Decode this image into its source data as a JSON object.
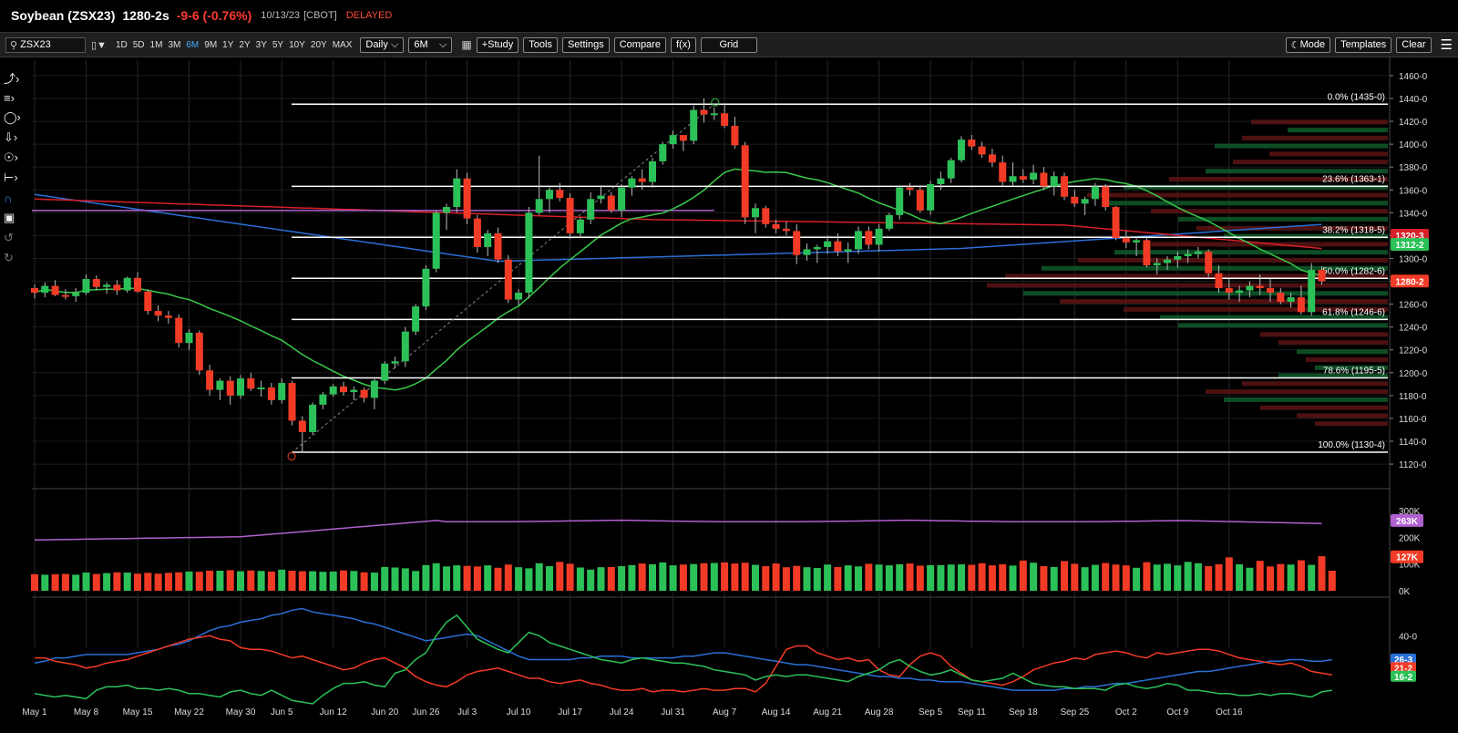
{
  "header": {
    "symbol": "Soybean (ZSX23)",
    "price": "1280-2s",
    "change": "-9-6 (-0.76%)",
    "date": "10/13/23",
    "exchange": "[CBOT]",
    "delayed": "DELAYED"
  },
  "toolbar": {
    "search_value": "ZSX23",
    "chart_style_icon": "candlestick-icon",
    "ranges": [
      "1D",
      "5D",
      "1M",
      "3M",
      "6M",
      "9M",
      "1Y",
      "2Y",
      "3Y",
      "5Y",
      "10Y",
      "20Y",
      "MAX"
    ],
    "selected_range": "6M",
    "interval": "Daily",
    "period": "6M",
    "study_label": "+Study",
    "tools_label": "Tools",
    "settings_label": "Settings",
    "compare_label": "Compare",
    "fx_label": "f(x)",
    "grid_label": "Grid",
    "mode_label": "Mode",
    "templates_label": "Templates",
    "clear_label": "Clear"
  },
  "sidebar_icons": [
    "line-tool-icon",
    "fib-tool-icon",
    "shape-tool-icon",
    "arrow-tool-icon",
    "annotation-tool-icon",
    "measure-tool-icon",
    "magnet-icon",
    "lock-icon",
    "undo-icon",
    "redo-icon"
  ],
  "colors": {
    "up": "#2cc158",
    "down": "#f23b26",
    "ma_green": "#38c94a",
    "ma_blue": "#2a6fd6",
    "ma_red": "#d8202a",
    "ma_purple": "#b060d0",
    "fib": "#ffffff"
  },
  "chart_data": {
    "type": "candlestick",
    "price_axis": {
      "ticks": [
        "1460-0",
        "1440-0",
        "1420-0",
        "1400-0",
        "1380-0",
        "1360-0",
        "1340-0",
        "1320-0",
        "1300-0",
        "1280-0",
        "1260-0",
        "1240-0",
        "1220-0",
        "1200-0",
        "1180-0",
        "1160-0",
        "1140-0",
        "1120-0"
      ],
      "ylim": [
        1112,
        1470
      ]
    },
    "date_ticks": [
      "May 1",
      "May 8",
      "May 15",
      "May 22",
      "May 30",
      "Jun 5",
      "Jun 12",
      "Jun 20",
      "Jun 26",
      "Jul 3",
      "Jul 10",
      "Jul 17",
      "Jul 24",
      "Jul 31",
      "Aug 7",
      "Aug 14",
      "Aug 21",
      "Aug 28",
      "Sep 5",
      "Sep 11",
      "Sep 18",
      "Sep 25",
      "Oct 2",
      "Oct 9",
      "Oct 16"
    ],
    "date_tick_bars": [
      0,
      5,
      10,
      15,
      20,
      24,
      29,
      34,
      38,
      42,
      47,
      52,
      57,
      62,
      67,
      72,
      77,
      82,
      87,
      91,
      96,
      101,
      106,
      111,
      116
    ],
    "candles": [
      [
        1274,
        1277,
        1265,
        1270
      ],
      [
        1270,
        1279,
        1266,
        1276
      ],
      [
        1276,
        1281,
        1267,
        1268
      ],
      [
        1268,
        1273,
        1264,
        1267
      ],
      [
        1267,
        1274,
        1262,
        1270
      ],
      [
        1270,
        1286,
        1268,
        1282
      ],
      [
        1282,
        1285,
        1272,
        1275
      ],
      [
        1275,
        1279,
        1269,
        1277
      ],
      [
        1277,
        1281,
        1268,
        1272
      ],
      [
        1272,
        1284,
        1270,
        1283
      ],
      [
        1283,
        1288,
        1270,
        1271
      ],
      [
        1271,
        1273,
        1251,
        1254
      ],
      [
        1254,
        1259,
        1245,
        1250
      ],
      [
        1250,
        1254,
        1243,
        1248
      ],
      [
        1248,
        1251,
        1222,
        1226
      ],
      [
        1226,
        1238,
        1220,
        1235
      ],
      [
        1235,
        1237,
        1198,
        1202
      ],
      [
        1202,
        1207,
        1180,
        1185
      ],
      [
        1185,
        1195,
        1176,
        1193
      ],
      [
        1193,
        1197,
        1172,
        1180
      ],
      [
        1180,
        1198,
        1177,
        1195
      ],
      [
        1195,
        1200,
        1184,
        1186
      ],
      [
        1186,
        1193,
        1179,
        1187
      ],
      [
        1187,
        1191,
        1172,
        1176
      ],
      [
        1176,
        1195,
        1173,
        1191
      ],
      [
        1191,
        1193,
        1154,
        1158
      ],
      [
        1158,
        1162,
        1130,
        1148
      ],
      [
        1148,
        1174,
        1146,
        1172
      ],
      [
        1172,
        1183,
        1168,
        1181
      ],
      [
        1181,
        1190,
        1179,
        1188
      ],
      [
        1188,
        1192,
        1180,
        1183
      ],
      [
        1183,
        1188,
        1176,
        1185
      ],
      [
        1185,
        1187,
        1174,
        1178
      ],
      [
        1178,
        1196,
        1168,
        1193
      ],
      [
        1193,
        1210,
        1190,
        1208
      ],
      [
        1208,
        1214,
        1204,
        1210
      ],
      [
        1210,
        1240,
        1205,
        1236
      ],
      [
        1236,
        1260,
        1233,
        1258
      ],
      [
        1258,
        1294,
        1255,
        1291
      ],
      [
        1291,
        1342,
        1288,
        1340
      ],
      [
        1340,
        1348,
        1325,
        1345
      ],
      [
        1345,
        1378,
        1340,
        1370
      ],
      [
        1370,
        1375,
        1330,
        1335
      ],
      [
        1335,
        1338,
        1305,
        1310
      ],
      [
        1310,
        1325,
        1302,
        1322
      ],
      [
        1322,
        1327,
        1296,
        1299
      ],
      [
        1299,
        1303,
        1261,
        1264
      ],
      [
        1264,
        1273,
        1259,
        1270
      ],
      [
        1270,
        1345,
        1265,
        1340
      ],
      [
        1340,
        1390,
        1338,
        1352
      ],
      [
        1352,
        1362,
        1340,
        1360
      ],
      [
        1360,
        1366,
        1350,
        1353
      ],
      [
        1353,
        1357,
        1317,
        1322
      ],
      [
        1322,
        1336,
        1318,
        1334
      ],
      [
        1334,
        1358,
        1330,
        1352
      ],
      [
        1352,
        1364,
        1348,
        1355
      ],
      [
        1355,
        1358,
        1340,
        1342
      ],
      [
        1342,
        1365,
        1336,
        1362
      ],
      [
        1362,
        1372,
        1355,
        1370
      ],
      [
        1370,
        1378,
        1360,
        1367
      ],
      [
        1367,
        1388,
        1362,
        1385
      ],
      [
        1385,
        1402,
        1382,
        1400
      ],
      [
        1400,
        1412,
        1396,
        1408
      ],
      [
        1408,
        1405,
        1394,
        1403
      ],
      [
        1403,
        1434,
        1400,
        1430
      ],
      [
        1430,
        1440,
        1419,
        1426
      ],
      [
        1426,
        1432,
        1421,
        1427
      ],
      [
        1427,
        1435,
        1414,
        1416
      ],
      [
        1416,
        1424,
        1396,
        1399
      ],
      [
        1399,
        1402,
        1330,
        1336
      ],
      [
        1336,
        1348,
        1322,
        1344
      ],
      [
        1344,
        1346,
        1327,
        1330
      ],
      [
        1330,
        1334,
        1322,
        1326
      ],
      [
        1326,
        1332,
        1320,
        1324
      ],
      [
        1324,
        1330,
        1295,
        1303
      ],
      [
        1303,
        1313,
        1298,
        1308
      ],
      [
        1308,
        1312,
        1296,
        1310
      ],
      [
        1310,
        1320,
        1304,
        1315
      ],
      [
        1315,
        1322,
        1302,
        1306
      ],
      [
        1306,
        1314,
        1296,
        1308
      ],
      [
        1308,
        1328,
        1304,
        1324
      ],
      [
        1324,
        1328,
        1308,
        1312
      ],
      [
        1312,
        1330,
        1306,
        1326
      ],
      [
        1326,
        1340,
        1324,
        1338
      ],
      [
        1338,
        1364,
        1334,
        1362
      ],
      [
        1362,
        1366,
        1355,
        1360
      ],
      [
        1360,
        1364,
        1340,
        1342
      ],
      [
        1342,
        1368,
        1338,
        1365
      ],
      [
        1365,
        1376,
        1360,
        1370
      ],
      [
        1370,
        1388,
        1366,
        1386
      ],
      [
        1386,
        1407,
        1384,
        1404
      ],
      [
        1404,
        1408,
        1395,
        1398
      ],
      [
        1398,
        1402,
        1388,
        1391
      ],
      [
        1391,
        1396,
        1380,
        1384
      ],
      [
        1384,
        1390,
        1364,
        1367
      ],
      [
        1367,
        1384,
        1364,
        1372
      ],
      [
        1372,
        1378,
        1366,
        1369
      ],
      [
        1369,
        1382,
        1365,
        1375
      ],
      [
        1375,
        1380,
        1360,
        1363
      ],
      [
        1363,
        1376,
        1355,
        1372
      ],
      [
        1372,
        1375,
        1351,
        1354
      ],
      [
        1354,
        1360,
        1345,
        1348
      ],
      [
        1348,
        1354,
        1338,
        1352
      ],
      [
        1352,
        1366,
        1346,
        1363
      ],
      [
        1363,
        1365,
        1342,
        1345
      ],
      [
        1345,
        1346,
        1316,
        1318
      ],
      [
        1318,
        1324,
        1309,
        1314
      ],
      [
        1314,
        1319,
        1302,
        1316
      ],
      [
        1316,
        1318,
        1292,
        1294
      ],
      [
        1294,
        1300,
        1286,
        1296
      ],
      [
        1296,
        1302,
        1290,
        1299
      ],
      [
        1299,
        1306,
        1292,
        1302
      ],
      [
        1302,
        1308,
        1296,
        1304
      ],
      [
        1304,
        1310,
        1300,
        1306
      ],
      [
        1306,
        1308,
        1284,
        1287
      ],
      [
        1287,
        1294,
        1270,
        1274
      ],
      [
        1274,
        1282,
        1264,
        1270
      ],
      [
        1270,
        1276,
        1262,
        1272
      ],
      [
        1272,
        1280,
        1266,
        1276
      ],
      [
        1276,
        1286,
        1268,
        1274
      ],
      [
        1274,
        1282,
        1262,
        1270
      ],
      [
        1270,
        1274,
        1260,
        1262
      ],
      [
        1262,
        1270,
        1257,
        1266
      ],
      [
        1266,
        1276,
        1251,
        1253
      ],
      [
        1253,
        1296,
        1250,
        1290
      ],
      [
        1290,
        1293,
        1277,
        1280
      ]
    ],
    "volume_values": [
      62,
      60,
      62,
      63,
      60,
      68,
      63,
      66,
      69,
      68,
      64,
      67,
      64,
      67,
      69,
      72,
      71,
      75,
      75,
      77,
      73,
      76,
      74,
      72,
      79,
      75,
      73,
      73,
      71,
      72,
      76,
      74,
      69,
      68,
      89,
      87,
      84,
      74,
      96,
      103,
      91,
      95,
      93,
      91,
      95,
      86,
      98,
      88,
      84,
      103,
      92,
      108,
      101,
      87,
      79,
      88,
      89,
      92,
      96,
      102,
      99,
      106,
      95,
      98,
      100,
      103,
      104,
      106,
      102,
      105,
      97,
      92,
      102,
      88,
      93,
      88,
      85,
      98,
      89,
      95,
      91,
      101,
      98,
      95,
      99,
      102,
      94,
      96,
      96,
      98,
      99,
      97,
      103,
      95,
      99,
      94,
      113,
      105,
      92,
      89,
      111,
      101,
      88,
      97,
      104,
      98,
      95,
      86,
      107,
      98,
      101,
      95,
      108,
      103,
      92,
      99,
      125,
      99,
      86,
      112,
      91,
      100,
      98,
      114,
      97,
      129,
      75
    ]
  },
  "studies": {
    "fib_levels": [
      "0.0% (1435-0)",
      "23.6% (1363-1)",
      "38.2% (1318-5)",
      "50.0% (1282-6)",
      "61.8% (1246-6)",
      "78.6% (1195-5)",
      "100.0% (1130-4)"
    ],
    "fib_values": [
      1435.0,
      1363.1,
      1318.5,
      1282.6,
      1246.6,
      1195.5,
      1130.4
    ],
    "badges": {
      "red_ma": "1320-3",
      "blue_ma": "1312-2",
      "last": "1280-2"
    },
    "volume_ticks": [
      "300K",
      "200K",
      "100K",
      "0K"
    ],
    "volume_badges": {
      "oi": "263K",
      "volume": "127K"
    },
    "dmi_ticks": [
      "40-0"
    ],
    "dmi_badges": {
      "adx": "26-3",
      "di_minus": "21-2",
      "di_plus": "16-2"
    },
    "dmi_blue": [
      24,
      25,
      27,
      27,
      28,
      29,
      29,
      29,
      29,
      29,
      30,
      31,
      32,
      34,
      35,
      37,
      40,
      43,
      45,
      46,
      48,
      49,
      50,
      52,
      53,
      55,
      56,
      54,
      53,
      52,
      51,
      50,
      48,
      47,
      45,
      43,
      41,
      39,
      37,
      38,
      39,
      40,
      41,
      40,
      37,
      34,
      31,
      28,
      26,
      26,
      26,
      26,
      26,
      27,
      27,
      28,
      28,
      28,
      27,
      27,
      27,
      27,
      27,
      28,
      28,
      29,
      30,
      30,
      29,
      28,
      27,
      26,
      25,
      24,
      23,
      23,
      22,
      21,
      20,
      19,
      18,
      17,
      16,
      16,
      15,
      15,
      14,
      14,
      13,
      13,
      13,
      12,
      11,
      10,
      9,
      8,
      8,
      8,
      8,
      8,
      9,
      9,
      10,
      10,
      11,
      12,
      12,
      13,
      14,
      15,
      16,
      17,
      18,
      19,
      19,
      20,
      21,
      22,
      23,
      24,
      25,
      25,
      26,
      26,
      25,
      25,
      26
    ],
    "dmi_red": [
      27,
      27,
      25,
      24,
      23,
      21,
      22,
      24,
      25,
      26,
      28,
      30,
      32,
      34,
      36,
      38,
      39,
      40,
      38,
      37,
      33,
      32,
      32,
      31,
      29,
      27,
      28,
      26,
      24,
      22,
      20,
      21,
      24,
      26,
      27,
      24,
      21,
      16,
      13,
      11,
      10,
      13,
      17,
      19,
      20,
      21,
      19,
      17,
      15,
      15,
      13,
      12,
      13,
      14,
      12,
      11,
      9,
      8,
      8,
      9,
      7,
      8,
      8,
      7,
      8,
      9,
      8,
      8,
      9,
      9,
      7,
      12,
      22,
      32,
      34,
      34,
      30,
      28,
      26,
      27,
      25,
      26,
      20,
      17,
      16,
      23,
      28,
      30,
      28,
      22,
      18,
      14,
      13,
      12,
      11,
      13,
      16,
      20,
      22,
      24,
      25,
      27,
      26,
      29,
      30,
      31,
      30,
      28,
      27,
      30,
      29,
      30,
      31,
      32,
      32,
      31,
      29,
      27,
      26,
      25,
      24,
      23,
      24,
      22,
      19,
      18,
      17
    ],
    "dmi_green": [
      6,
      5,
      4,
      5,
      4,
      3,
      8,
      10,
      10,
      11,
      9,
      9,
      8,
      9,
      8,
      6,
      6,
      5,
      4,
      7,
      8,
      6,
      5,
      8,
      5,
      2,
      1,
      0,
      5,
      9,
      12,
      12,
      13,
      11,
      10,
      18,
      20,
      26,
      30,
      40,
      48,
      52,
      45,
      38,
      35,
      32,
      30,
      36,
      42,
      40,
      36,
      34,
      32,
      30,
      28,
      26,
      25,
      24,
      26,
      27,
      26,
      25,
      24,
      24,
      23,
      22,
      20,
      19,
      18,
      17,
      14,
      16,
      17,
      16,
      17,
      17,
      16,
      15,
      14,
      13,
      16,
      18,
      20,
      24,
      26,
      22,
      19,
      17,
      18,
      20,
      17,
      14,
      13,
      14,
      15,
      18,
      15,
      12,
      11,
      10,
      10,
      9,
      9,
      9,
      8,
      11,
      12,
      10,
      9,
      10,
      12,
      11,
      8,
      8,
      7,
      6,
      6,
      5,
      5,
      6,
      5,
      6,
      6,
      5,
      4,
      7,
      8
    ]
  }
}
